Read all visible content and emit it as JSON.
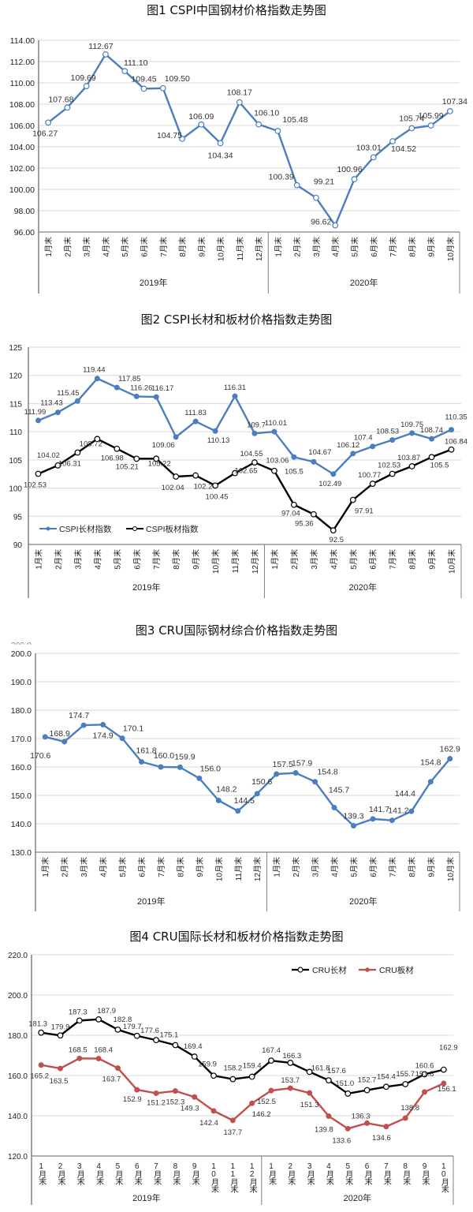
{
  "chart_data": [
    {
      "type": "line",
      "title": "图1  CSPI中国钢材价格指数走势图",
      "categories": [
        "1月末",
        "2月末",
        "3月末",
        "4月末",
        "5月末",
        "6月末",
        "7月末",
        "8月末",
        "9月末",
        "10月末",
        "11月末",
        "12月末",
        "1月末",
        "2月末",
        "3月末",
        "4月末",
        "5月末",
        "6月末",
        "7月末",
        "8月末",
        "9月末",
        "10月末"
      ],
      "year_groups": [
        {
          "label": "2019年",
          "count": 12
        },
        {
          "label": "2020年",
          "count": 10
        }
      ],
      "ylim": [
        96,
        114
      ],
      "yticks": [
        "96.00",
        "98.00",
        "100.00",
        "102.00",
        "104.00",
        "106.00",
        "108.00",
        "110.00",
        "112.00",
        "114.00"
      ],
      "grid": true,
      "series": [
        {
          "name": "CSPI中国钢材价格指数",
          "color": "#4a7ebf",
          "marker": "open-circle",
          "values": [
            106.27,
            107.68,
            109.69,
            112.67,
            111.1,
            109.45,
            109.5,
            104.75,
            106.09,
            104.34,
            108.17,
            106.1,
            105.48,
            100.39,
            99.21,
            96.62,
            100.96,
            103.01,
            104.52,
            105.74,
            105.99,
            107.34
          ],
          "labels": [
            "106.27",
            "107.68",
            "109.69",
            "112.67",
            "111.10",
            "109.45",
            "109.50",
            "104.75",
            "106.09",
            "104.34",
            "108.17",
            "106.10",
            "105.48",
            "100.39",
            "99.21",
            "96.62",
            "100.96",
            "103.01",
            "104.52",
            "105.74",
            "105.99",
            "107.34"
          ]
        }
      ]
    },
    {
      "type": "line",
      "title": "图2  CSPI长材和板材价格指数走势图",
      "categories": [
        "1月末",
        "2月末",
        "3月末",
        "4月末",
        "5月末",
        "6月末",
        "7月末",
        "8月末",
        "9月末",
        "10月末",
        "11月末",
        "12月末",
        "1月末",
        "2月末",
        "3月末",
        "4月末",
        "5月末",
        "6月末",
        "7月末",
        "8月末",
        "9月末",
        "10月末"
      ],
      "year_groups": [
        {
          "label": "2019年",
          "count": 12
        },
        {
          "label": "2020年",
          "count": 10
        }
      ],
      "ylim": [
        90,
        125
      ],
      "yticks": [
        "90",
        "95",
        "100",
        "105",
        "110",
        "115",
        "120",
        "125"
      ],
      "grid": true,
      "legend_position": "bottom-left",
      "series": [
        {
          "name": "CSPI长材指数",
          "color": "#4a7ebf",
          "marker": "filled-circle",
          "values": [
            111.99,
            113.43,
            115.45,
            119.44,
            117.85,
            116.26,
            116.17,
            109.06,
            111.83,
            110.13,
            116.31,
            109.7,
            110.01,
            105.5,
            104.67,
            102.49,
            106.12,
            107.4,
            108.53,
            109.75,
            108.74,
            110.35
          ],
          "labels": [
            "111.99",
            "113.43",
            "115.45",
            "119.44",
            "117.85",
            "116.26",
            "116.17",
            "109.06",
            "111.83",
            "110.13",
            "116.31",
            "109.7",
            "110.01",
            "105.5",
            "104.67",
            "102.49",
            "106.12",
            "107.4",
            "108.53",
            "109.75",
            "108.74",
            "110.35"
          ]
        },
        {
          "name": "CSPI板材指数",
          "color": "#000000",
          "marker": "open-circle",
          "values": [
            102.53,
            104.02,
            106.31,
            108.72,
            106.98,
            105.21,
            105.22,
            102.04,
            102.24,
            100.45,
            102.65,
            104.55,
            103.06,
            97.04,
            95.36,
            92.5,
            97.91,
            100.77,
            102.53,
            103.87,
            105.5,
            106.84
          ],
          "labels": [
            "102.53",
            "104.02",
            "106.31",
            "108.72",
            "106.98",
            "105.21",
            "105.22",
            "102.04",
            "102.24",
            "100.45",
            "102.65",
            "104.55",
            "103.06",
            "97.04",
            "95.36",
            "92.5",
            "97.91",
            "100.77",
            "102.53",
            "103.87",
            "105.5",
            "106.84"
          ]
        }
      ]
    },
    {
      "type": "line",
      "title": "图3  CRU国际钢材综合价格指数走势图",
      "categories": [
        "1月末",
        "2月末",
        "3月末",
        "4月末",
        "5月末",
        "6月末",
        "7月末",
        "8月末",
        "9月末",
        "10月末",
        "11月末",
        "12月末",
        "1月末",
        "2月末",
        "3月末",
        "4月末",
        "5月末",
        "6月末",
        "7月末",
        "8月末",
        "9月末",
        "10月末"
      ],
      "year_groups": [
        {
          "label": "2019年",
          "count": 12
        },
        {
          "label": "2020年",
          "count": 10
        }
      ],
      "ylim": [
        130,
        200
      ],
      "yticks": [
        "130.0",
        "140.0",
        "150.0",
        "160.0",
        "170.0",
        "180.0",
        "190.0",
        "200.0"
      ],
      "grid": true,
      "series": [
        {
          "name": "CRU国际钢材综合价格指数",
          "color": "#4a7ebf",
          "marker": "filled-circle",
          "values": [
            170.6,
            168.9,
            174.7,
            174.9,
            170.1,
            161.8,
            160.0,
            159.9,
            156.0,
            148.2,
            144.5,
            150.6,
            157.5,
            157.9,
            154.8,
            145.7,
            139.3,
            141.7,
            141.2,
            144.4,
            154.8,
            162.9
          ],
          "labels": [
            "170.6",
            "168.9",
            "174.7",
            "174.9",
            "170.1",
            "161.8",
            "160.0",
            "159.9",
            "156.0",
            "148.2",
            "144.5",
            "150.6",
            "157.5",
            "157.9",
            "154.8",
            "145.7",
            "139.3",
            "141.7",
            "141.2",
            "144.4",
            "154.8",
            "162.9"
          ]
        }
      ]
    },
    {
      "type": "line",
      "title": "图4  CRU国际长材和板材价格指数走势图",
      "categories": [
        "1月末",
        "2月末",
        "3月末",
        "4月末",
        "5月末",
        "6月末",
        "7月末",
        "8月末",
        "9月末",
        "10月末",
        "11月末",
        "12月末",
        "1月末",
        "2月末",
        "3月末",
        "4月末",
        "5月末",
        "6月末",
        "7月末",
        "8月末",
        "9月末",
        "10月末"
      ],
      "year_groups": [
        {
          "label": "2019年",
          "count": 12
        },
        {
          "label": "2020年",
          "count": 10
        }
      ],
      "ylim": [
        120,
        220
      ],
      "yticks": [
        "120.0",
        "140.0",
        "160.0",
        "180.0",
        "200.0",
        "220.0"
      ],
      "grid": true,
      "legend_position": "top-right",
      "series": [
        {
          "name": "CRU长材",
          "color": "#000000",
          "marker": "open-circle",
          "values": [
            181.3,
            179.9,
            187.3,
            187.9,
            182.8,
            179.7,
            177.6,
            175.1,
            169.4,
            159.9,
            158.2,
            159.4,
            167.4,
            166.3,
            161.8,
            157.6,
            151.0,
            152.7,
            154.4,
            155.7,
            160.6,
            162.9
          ],
          "labels": [
            "181.3",
            "179.9",
            "187.3",
            "187.9",
            "182.8",
            "179.7",
            "177.6",
            "175.1",
            "169.4",
            "159.9",
            "158.2",
            "159.4",
            "167.4",
            "166.3",
            "161.8",
            "157.6",
            "151.0",
            "152.7",
            "154.4",
            "155.7",
            "160.6",
            "162.9"
          ]
        },
        {
          "name": "CRU板材",
          "color": "#c0504d",
          "marker": "filled-circle",
          "values": [
            165.2,
            163.5,
            168.5,
            168.4,
            163.7,
            152.9,
            151.2,
            152.3,
            149.3,
            142.4,
            137.7,
            146.2,
            152.5,
            153.7,
            151.3,
            139.8,
            133.6,
            136.3,
            134.6,
            138.8,
            151.8,
            156.1
          ],
          "labels": [
            "165.2",
            "163.5",
            "168.5",
            "168.4",
            "163.7",
            "152.9",
            "151.2",
            "152.3",
            "149.3",
            "142.4",
            "137.7",
            "146.2",
            "152.5",
            "153.7",
            "151.3",
            "139.8",
            "133.6",
            "136.3",
            "134.6",
            "138.8",
            "151.8",
            "156.1"
          ]
        }
      ]
    }
  ]
}
